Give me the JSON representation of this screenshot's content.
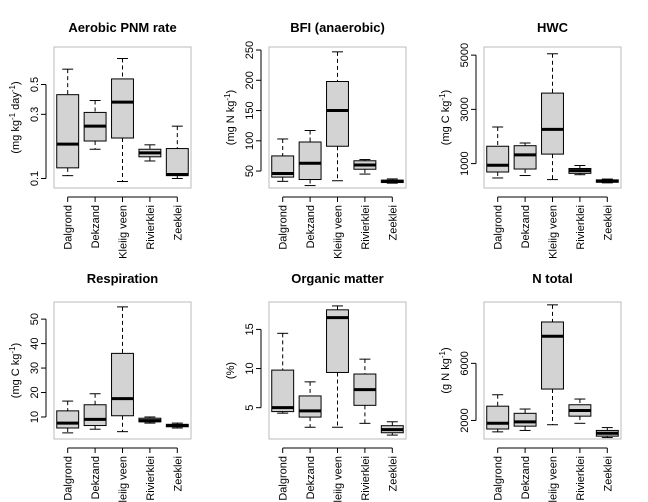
{
  "figure": {
    "background": "#ffffff",
    "box_fill": "#d3d3d3",
    "frame_color": "#bbbbbb"
  },
  "chart_data": [
    {
      "type": "boxplot",
      "title": "Aerobic PNM rate",
      "ylabel": {
        "pre": "(mg kg",
        "sup1": "-1",
        "mid": " day",
        "sup2": "-1",
        "post": ")"
      },
      "log_scale": true,
      "ylim": [
        0.085,
        0.95
      ],
      "yticks": [
        0.1,
        0.3,
        0.5
      ],
      "categories": [
        "Dalgrond",
        "Dekzand",
        "Kleiig veen",
        "Rivierklei",
        "Zeeklei"
      ],
      "boxes": [
        {
          "whisker_low": 0.105,
          "q1": 0.12,
          "median": 0.18,
          "q3": 0.42,
          "whisker_high": 0.65
        },
        {
          "whisker_low": 0.165,
          "q1": 0.19,
          "median": 0.245,
          "q3": 0.31,
          "whisker_high": 0.38
        },
        {
          "whisker_low": 0.095,
          "q1": 0.2,
          "median": 0.37,
          "q3": 0.55,
          "whisker_high": 0.78
        },
        {
          "whisker_low": 0.135,
          "q1": 0.145,
          "median": 0.155,
          "q3": 0.165,
          "whisker_high": 0.178
        },
        {
          "whisker_low": 0.1,
          "q1": 0.105,
          "median": 0.107,
          "q3": 0.167,
          "whisker_high": 0.245
        }
      ]
    },
    {
      "type": "boxplot",
      "title": "BFI (anaerobic)",
      "ylabel": {
        "pre": "(mg N kg",
        "sup1": "-1",
        "mid": "",
        "sup2": "",
        "post": ")"
      },
      "log_scale": false,
      "ylim": [
        22,
        255
      ],
      "yticks": [
        50,
        100,
        150,
        200,
        250
      ],
      "categories": [
        "Dalgrond",
        "Dekzand",
        "Kleiig veen",
        "Rivierklei",
        "Zeeklei"
      ],
      "boxes": [
        {
          "whisker_low": 33,
          "q1": 40,
          "median": 46,
          "q3": 75,
          "whisker_high": 103
        },
        {
          "whisker_low": 26,
          "q1": 36,
          "median": 63,
          "q3": 98,
          "whisker_high": 117
        },
        {
          "whisker_low": 34,
          "q1": 91,
          "median": 150,
          "q3": 198,
          "whisker_high": 247
        },
        {
          "whisker_low": 45,
          "q1": 53,
          "median": 60,
          "q3": 67,
          "whisker_high": 69
        },
        {
          "whisker_low": 30,
          "q1": 31,
          "median": 33,
          "q3": 35,
          "whisker_high": 37
        }
      ]
    },
    {
      "type": "boxplot",
      "title": "HWC",
      "ylabel": {
        "pre": "(mg C kg",
        "sup1": "-1",
        "mid": "",
        "sup2": "",
        "post": ")"
      },
      "log_scale": false,
      "ylim": [
        100,
        5300
      ],
      "yticks": [
        1000,
        3000,
        5000
      ],
      "categories": [
        "Dalgrond",
        "Dekzand",
        "Kleiig veen",
        "Rivierklei",
        "Zeeklei"
      ],
      "boxes": [
        {
          "whisker_low": 470,
          "q1": 690,
          "median": 940,
          "q3": 1640,
          "whisker_high": 2350
        },
        {
          "whisker_low": 560,
          "q1": 800,
          "median": 1320,
          "q3": 1660,
          "whisker_high": 1760
        },
        {
          "whisker_low": 410,
          "q1": 1350,
          "median": 2260,
          "q3": 3600,
          "whisker_high": 5050
        },
        {
          "whisker_low": 590,
          "q1": 640,
          "median": 740,
          "q3": 820,
          "whisker_high": 930
        },
        {
          "whisker_low": 290,
          "q1": 310,
          "median": 360,
          "q3": 400,
          "whisker_high": 430
        }
      ]
    },
    {
      "type": "boxplot",
      "title": "Respiration",
      "ylabel": {
        "pre": "(mg C kg",
        "sup1": "-1",
        "mid": "",
        "sup2": "",
        "post": ")"
      },
      "log_scale": false,
      "ylim": [
        1,
        57
      ],
      "yticks": [
        10,
        20,
        30,
        40,
        50
      ],
      "categories": [
        "Dalgrond",
        "Dekzand",
        "Kleiig veen",
        "Rivierklei",
        "Zeeklei"
      ],
      "boxes": [
        {
          "whisker_low": 3.5,
          "q1": 5.5,
          "median": 7.5,
          "q3": 12.5,
          "whisker_high": 16.5
        },
        {
          "whisker_low": 5,
          "q1": 6.5,
          "median": 9,
          "q3": 15,
          "whisker_high": 19.5
        },
        {
          "whisker_low": 4,
          "q1": 10.5,
          "median": 17.5,
          "q3": 36,
          "whisker_high": 55
        },
        {
          "whisker_low": 7.5,
          "q1": 8,
          "median": 8.5,
          "q3": 9.5,
          "whisker_high": 10
        },
        {
          "whisker_low": 5.5,
          "q1": 6,
          "median": 6.5,
          "q3": 7,
          "whisker_high": 7.5
        }
      ]
    },
    {
      "type": "boxplot",
      "title": "Organic matter",
      "ylabel": {
        "pre": "(%)",
        "sup1": "",
        "mid": "",
        "sup2": "",
        "post": ""
      },
      "log_scale": false,
      "ylim": [
        1,
        18.5
      ],
      "yticks": [
        5,
        10,
        15
      ],
      "categories": [
        "Dalgrond",
        "Dekzand",
        "Kleiig veen",
        "Rivierklei",
        "Zeeklei"
      ],
      "boxes": [
        {
          "whisker_low": 4.3,
          "q1": 4.5,
          "median": 5.0,
          "q3": 9.8,
          "whisker_high": 14.5
        },
        {
          "whisker_low": 2.5,
          "q1": 3.8,
          "median": 4.6,
          "q3": 6.5,
          "whisker_high": 8.3
        },
        {
          "whisker_low": 2.5,
          "q1": 9.5,
          "median": 16.5,
          "q3": 17.5,
          "whisker_high": 18.0
        },
        {
          "whisker_low": 3.0,
          "q1": 5.3,
          "median": 7.3,
          "q3": 9.3,
          "whisker_high": 11.2
        },
        {
          "whisker_low": 1.5,
          "q1": 1.8,
          "median": 2.2,
          "q3": 2.7,
          "whisker_high": 3.2
        }
      ]
    },
    {
      "type": "boxplot",
      "title": "N total",
      "ylabel": {
        "pre": "(g N kg",
        "sup1": "-1",
        "mid": "",
        "sup2": "",
        "post": ")"
      },
      "log_scale": false,
      "ylim": [
        700,
        10300
      ],
      "yticks": [
        2000,
        6000
      ],
      "categories": [
        "Dalgrond",
        "Dekzand",
        "Kleiig veen",
        "Rivierklei",
        "Zeeklei"
      ],
      "boxes": [
        {
          "whisker_low": 1200,
          "q1": 1400,
          "median": 1800,
          "q3": 3000,
          "whisker_high": 3800
        },
        {
          "whisker_low": 1300,
          "q1": 1600,
          "median": 1900,
          "q3": 2500,
          "whisker_high": 2800
        },
        {
          "whisker_low": 1700,
          "q1": 4200,
          "median": 7900,
          "q3": 8900,
          "whisker_high": 10100
        },
        {
          "whisker_low": 1800,
          "q1": 2300,
          "median": 2700,
          "q3": 3100,
          "whisker_high": 3500
        },
        {
          "whisker_low": 800,
          "q1": 900,
          "median": 1100,
          "q3": 1300,
          "whisker_high": 1500
        }
      ]
    }
  ]
}
